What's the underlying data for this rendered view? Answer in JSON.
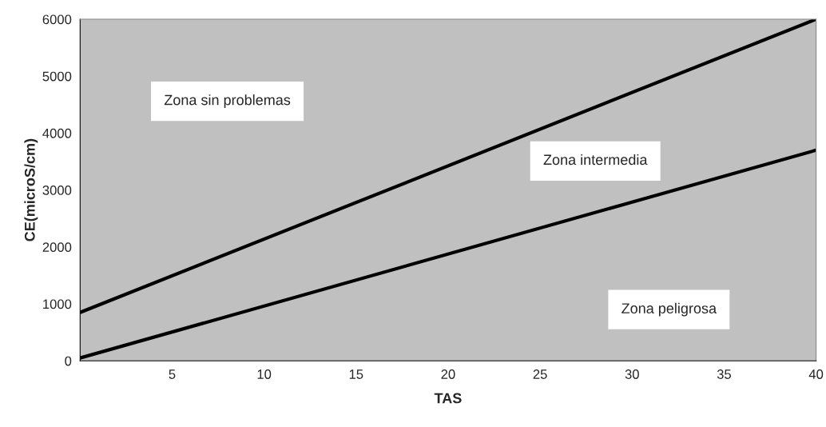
{
  "chart_data": {
    "type": "line",
    "xlabel": "TAS",
    "ylabel": "CE(microS/cm)",
    "x": [
      0,
      40
    ],
    "series": [
      {
        "color": "#000000",
        "values": [
          850,
          6000
        ]
      },
      {
        "color": "#000000",
        "values": [
          50,
          3700
        ]
      }
    ],
    "xlim": [
      0,
      40
    ],
    "ylim": [
      0,
      6000
    ],
    "xticks": [
      {
        "value": 0,
        "label": null
      },
      5,
      10,
      15,
      20,
      25,
      30,
      35,
      40
    ],
    "yticks": [
      0,
      1000,
      2000,
      3000,
      4000,
      5000,
      6000
    ],
    "grid": false,
    "legend": false,
    "marker": "none",
    "line_style": "solid",
    "annotations": [
      "Zona sin problemas",
      "Zona intermedia",
      "Zona peligrosa"
    ]
  }
}
